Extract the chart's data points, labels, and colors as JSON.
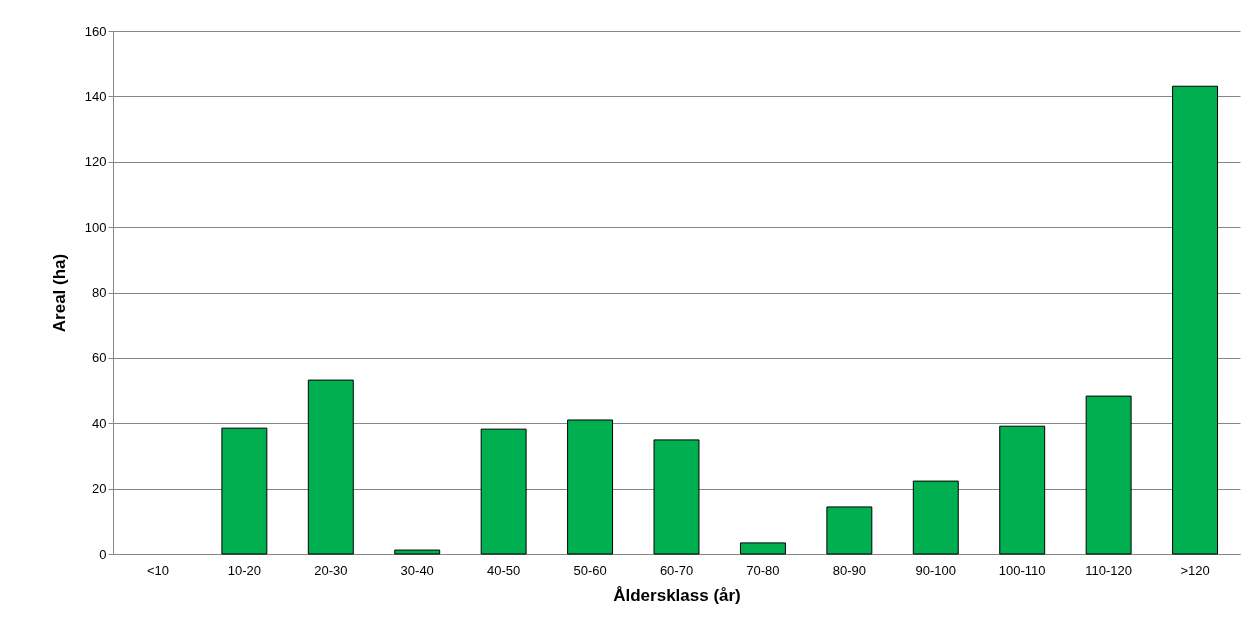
{
  "chart_data": {
    "type": "bar",
    "xlabel": "Åldersklass (år)",
    "ylabel": "Areal (ha)",
    "categories": [
      "<10",
      "10-20",
      "20-30",
      "30-40",
      "40-50",
      "50-60",
      "60-70",
      "70-80",
      "80-90",
      "90-100",
      "100-110",
      "110-120",
      ">120"
    ],
    "values": [
      null,
      38.5,
      53.2,
      1.2,
      38.2,
      41.0,
      34.9,
      3.4,
      14.4,
      22.3,
      39.1,
      48.3,
      143.1
    ],
    "color": "#00b050",
    "ylim": [
      0,
      160
    ],
    "yticks": [
      0,
      20,
      40,
      60,
      80,
      100,
      120,
      140,
      160
    ],
    "grid": "y"
  }
}
